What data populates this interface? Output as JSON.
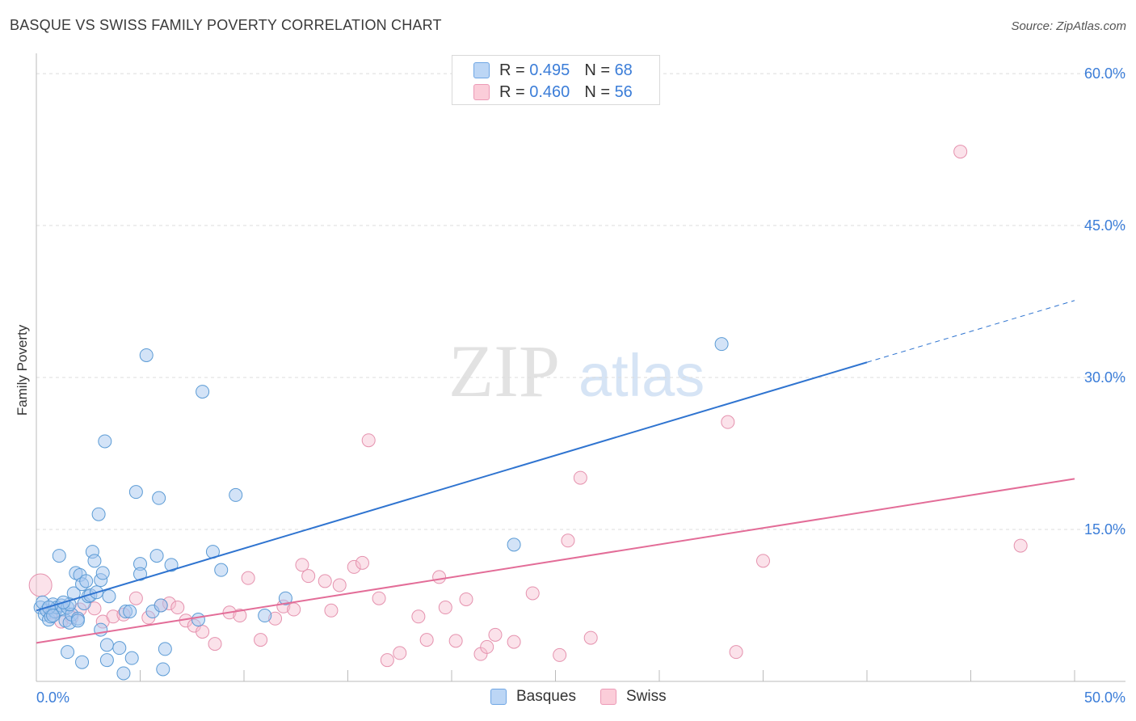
{
  "title": "BASQUE VS SWISS FAMILY POVERTY CORRELATION CHART",
  "source": "Source: ZipAtlas.com",
  "watermark": {
    "zip": "ZIP",
    "atlas": "atlas"
  },
  "legend_top": [
    {
      "r_label": "R =",
      "r_value": "0.495",
      "n_label": "N =",
      "n_value": "68"
    },
    {
      "r_label": "R =",
      "r_value": "0.460",
      "n_label": "N =",
      "n_value": "56"
    }
  ],
  "colors": {
    "basques_fill": "#a8c8f0",
    "basques_stroke": "#5b9bd5",
    "basques_line": "#2f74d0",
    "swiss_fill": "#f7bfd0",
    "swiss_stroke": "#e592ae",
    "swiss_line": "#e36d98",
    "axis_text": "#3b7dd8",
    "grid": "#dcdcdc"
  },
  "chart_data": {
    "type": "scatter",
    "title": "BASQUE VS SWISS FAMILY POVERTY CORRELATION CHART",
    "xlabel": "",
    "ylabel": "Family Poverty",
    "xlim": [
      0,
      50
    ],
    "ylim": [
      0,
      62
    ],
    "x_tick_labels": [
      "0.0%",
      "50.0%"
    ],
    "y_ticks": [
      15,
      30,
      45,
      60
    ],
    "y_tick_labels": [
      "15.0%",
      "30.0%",
      "45.0%",
      "60.0%"
    ],
    "grid": true,
    "legend_position": "bottom",
    "series": [
      {
        "name": "Basques",
        "r": 0.495,
        "n": 68,
        "trend": {
          "x0": 0,
          "y0": 7.0,
          "x1": 40,
          "y1": 31.5,
          "dashed_to_x": 50,
          "dashed_to_y": 37.6
        },
        "points": [
          [
            0.2,
            7.3
          ],
          [
            0.4,
            6.6
          ],
          [
            0.5,
            7.0
          ],
          [
            0.6,
            6.1
          ],
          [
            0.7,
            6.4
          ],
          [
            0.8,
            7.6
          ],
          [
            0.9,
            6.9
          ],
          [
            1.0,
            7.3
          ],
          [
            0.3,
            7.8
          ],
          [
            1.1,
            12.4
          ],
          [
            1.2,
            7.5
          ],
          [
            1.3,
            7.1
          ],
          [
            1.4,
            6.0
          ],
          [
            1.5,
            7.3
          ],
          [
            1.6,
            5.8
          ],
          [
            1.7,
            6.6
          ],
          [
            1.8,
            8.7
          ],
          [
            1.9,
            10.7
          ],
          [
            2.0,
            6.2
          ],
          [
            2.1,
            10.5
          ],
          [
            2.2,
            9.6
          ],
          [
            2.3,
            7.7
          ],
          [
            2.4,
            9.9
          ],
          [
            2.5,
            8.4
          ],
          [
            2.6,
            8.5
          ],
          [
            2.7,
            12.8
          ],
          [
            2.8,
            11.9
          ],
          [
            2.9,
            8.8
          ],
          [
            3.0,
            16.5
          ],
          [
            3.1,
            10.0
          ],
          [
            3.2,
            10.7
          ],
          [
            3.1,
            5.1
          ],
          [
            3.3,
            23.7
          ],
          [
            3.4,
            3.6
          ],
          [
            3.5,
            8.4
          ],
          [
            1.5,
            2.9
          ],
          [
            2.2,
            1.9
          ],
          [
            3.4,
            2.1
          ],
          [
            4.0,
            3.3
          ],
          [
            4.2,
            0.8
          ],
          [
            4.3,
            6.9
          ],
          [
            4.5,
            6.9
          ],
          [
            4.6,
            2.3
          ],
          [
            4.8,
            18.7
          ],
          [
            5.0,
            11.6
          ],
          [
            5.0,
            10.6
          ],
          [
            5.3,
            32.2
          ],
          [
            5.6,
            6.9
          ],
          [
            5.8,
            12.4
          ],
          [
            5.9,
            18.1
          ],
          [
            6.0,
            7.5
          ],
          [
            6.1,
            1.2
          ],
          [
            6.2,
            3.2
          ],
          [
            6.5,
            11.5
          ],
          [
            7.8,
            6.1
          ],
          [
            8.0,
            28.6
          ],
          [
            8.5,
            12.8
          ],
          [
            8.9,
            11.0
          ],
          [
            9.6,
            18.4
          ],
          [
            11.0,
            6.5
          ],
          [
            12.0,
            8.2
          ],
          [
            23.0,
            13.5
          ],
          [
            33.0,
            33.3
          ],
          [
            0.6,
            7.3
          ],
          [
            1.6,
            7.6
          ],
          [
            2.0,
            6.0
          ],
          [
            0.8,
            6.5
          ],
          [
            1.3,
            7.8
          ]
        ]
      },
      {
        "name": "Swiss",
        "r": 0.46,
        "n": 56,
        "trend": {
          "x0": 0,
          "y0": 3.8,
          "x1": 50,
          "y1": 20.0
        },
        "points": [
          [
            0.2,
            9.5
          ],
          [
            0.7,
            6.8
          ],
          [
            1.2,
            5.9
          ],
          [
            1.7,
            6.3
          ],
          [
            2.1,
            7.1
          ],
          [
            2.8,
            7.2
          ],
          [
            3.2,
            5.9
          ],
          [
            3.7,
            6.4
          ],
          [
            4.2,
            6.6
          ],
          [
            4.8,
            8.2
          ],
          [
            5.4,
            6.3
          ],
          [
            6.0,
            7.5
          ],
          [
            6.4,
            7.7
          ],
          [
            6.8,
            7.3
          ],
          [
            7.2,
            6.0
          ],
          [
            7.6,
            5.5
          ],
          [
            8.0,
            4.9
          ],
          [
            8.6,
            3.7
          ],
          [
            9.3,
            6.8
          ],
          [
            9.8,
            6.5
          ],
          [
            10.2,
            10.2
          ],
          [
            10.8,
            4.1
          ],
          [
            11.5,
            6.2
          ],
          [
            11.9,
            7.4
          ],
          [
            12.4,
            7.1
          ],
          [
            12.8,
            11.5
          ],
          [
            13.1,
            10.4
          ],
          [
            13.9,
            9.9
          ],
          [
            14.2,
            7.0
          ],
          [
            14.6,
            9.5
          ],
          [
            15.3,
            11.3
          ],
          [
            15.7,
            11.7
          ],
          [
            16.0,
            23.8
          ],
          [
            16.5,
            8.2
          ],
          [
            16.9,
            2.1
          ],
          [
            17.5,
            2.8
          ],
          [
            18.4,
            6.4
          ],
          [
            18.8,
            4.1
          ],
          [
            19.4,
            10.3
          ],
          [
            19.7,
            7.3
          ],
          [
            20.2,
            4.0
          ],
          [
            20.7,
            8.1
          ],
          [
            21.4,
            2.7
          ],
          [
            21.7,
            3.4
          ],
          [
            22.1,
            4.6
          ],
          [
            23.0,
            3.9
          ],
          [
            23.9,
            8.7
          ],
          [
            25.2,
            2.6
          ],
          [
            25.6,
            13.9
          ],
          [
            26.2,
            20.1
          ],
          [
            26.7,
            4.3
          ],
          [
            33.3,
            25.6
          ],
          [
            33.7,
            2.9
          ],
          [
            35.0,
            11.9
          ],
          [
            44.5,
            52.3
          ],
          [
            47.4,
            13.4
          ]
        ]
      }
    ]
  },
  "legend_bottom": [
    "Basques",
    "Swiss"
  ]
}
